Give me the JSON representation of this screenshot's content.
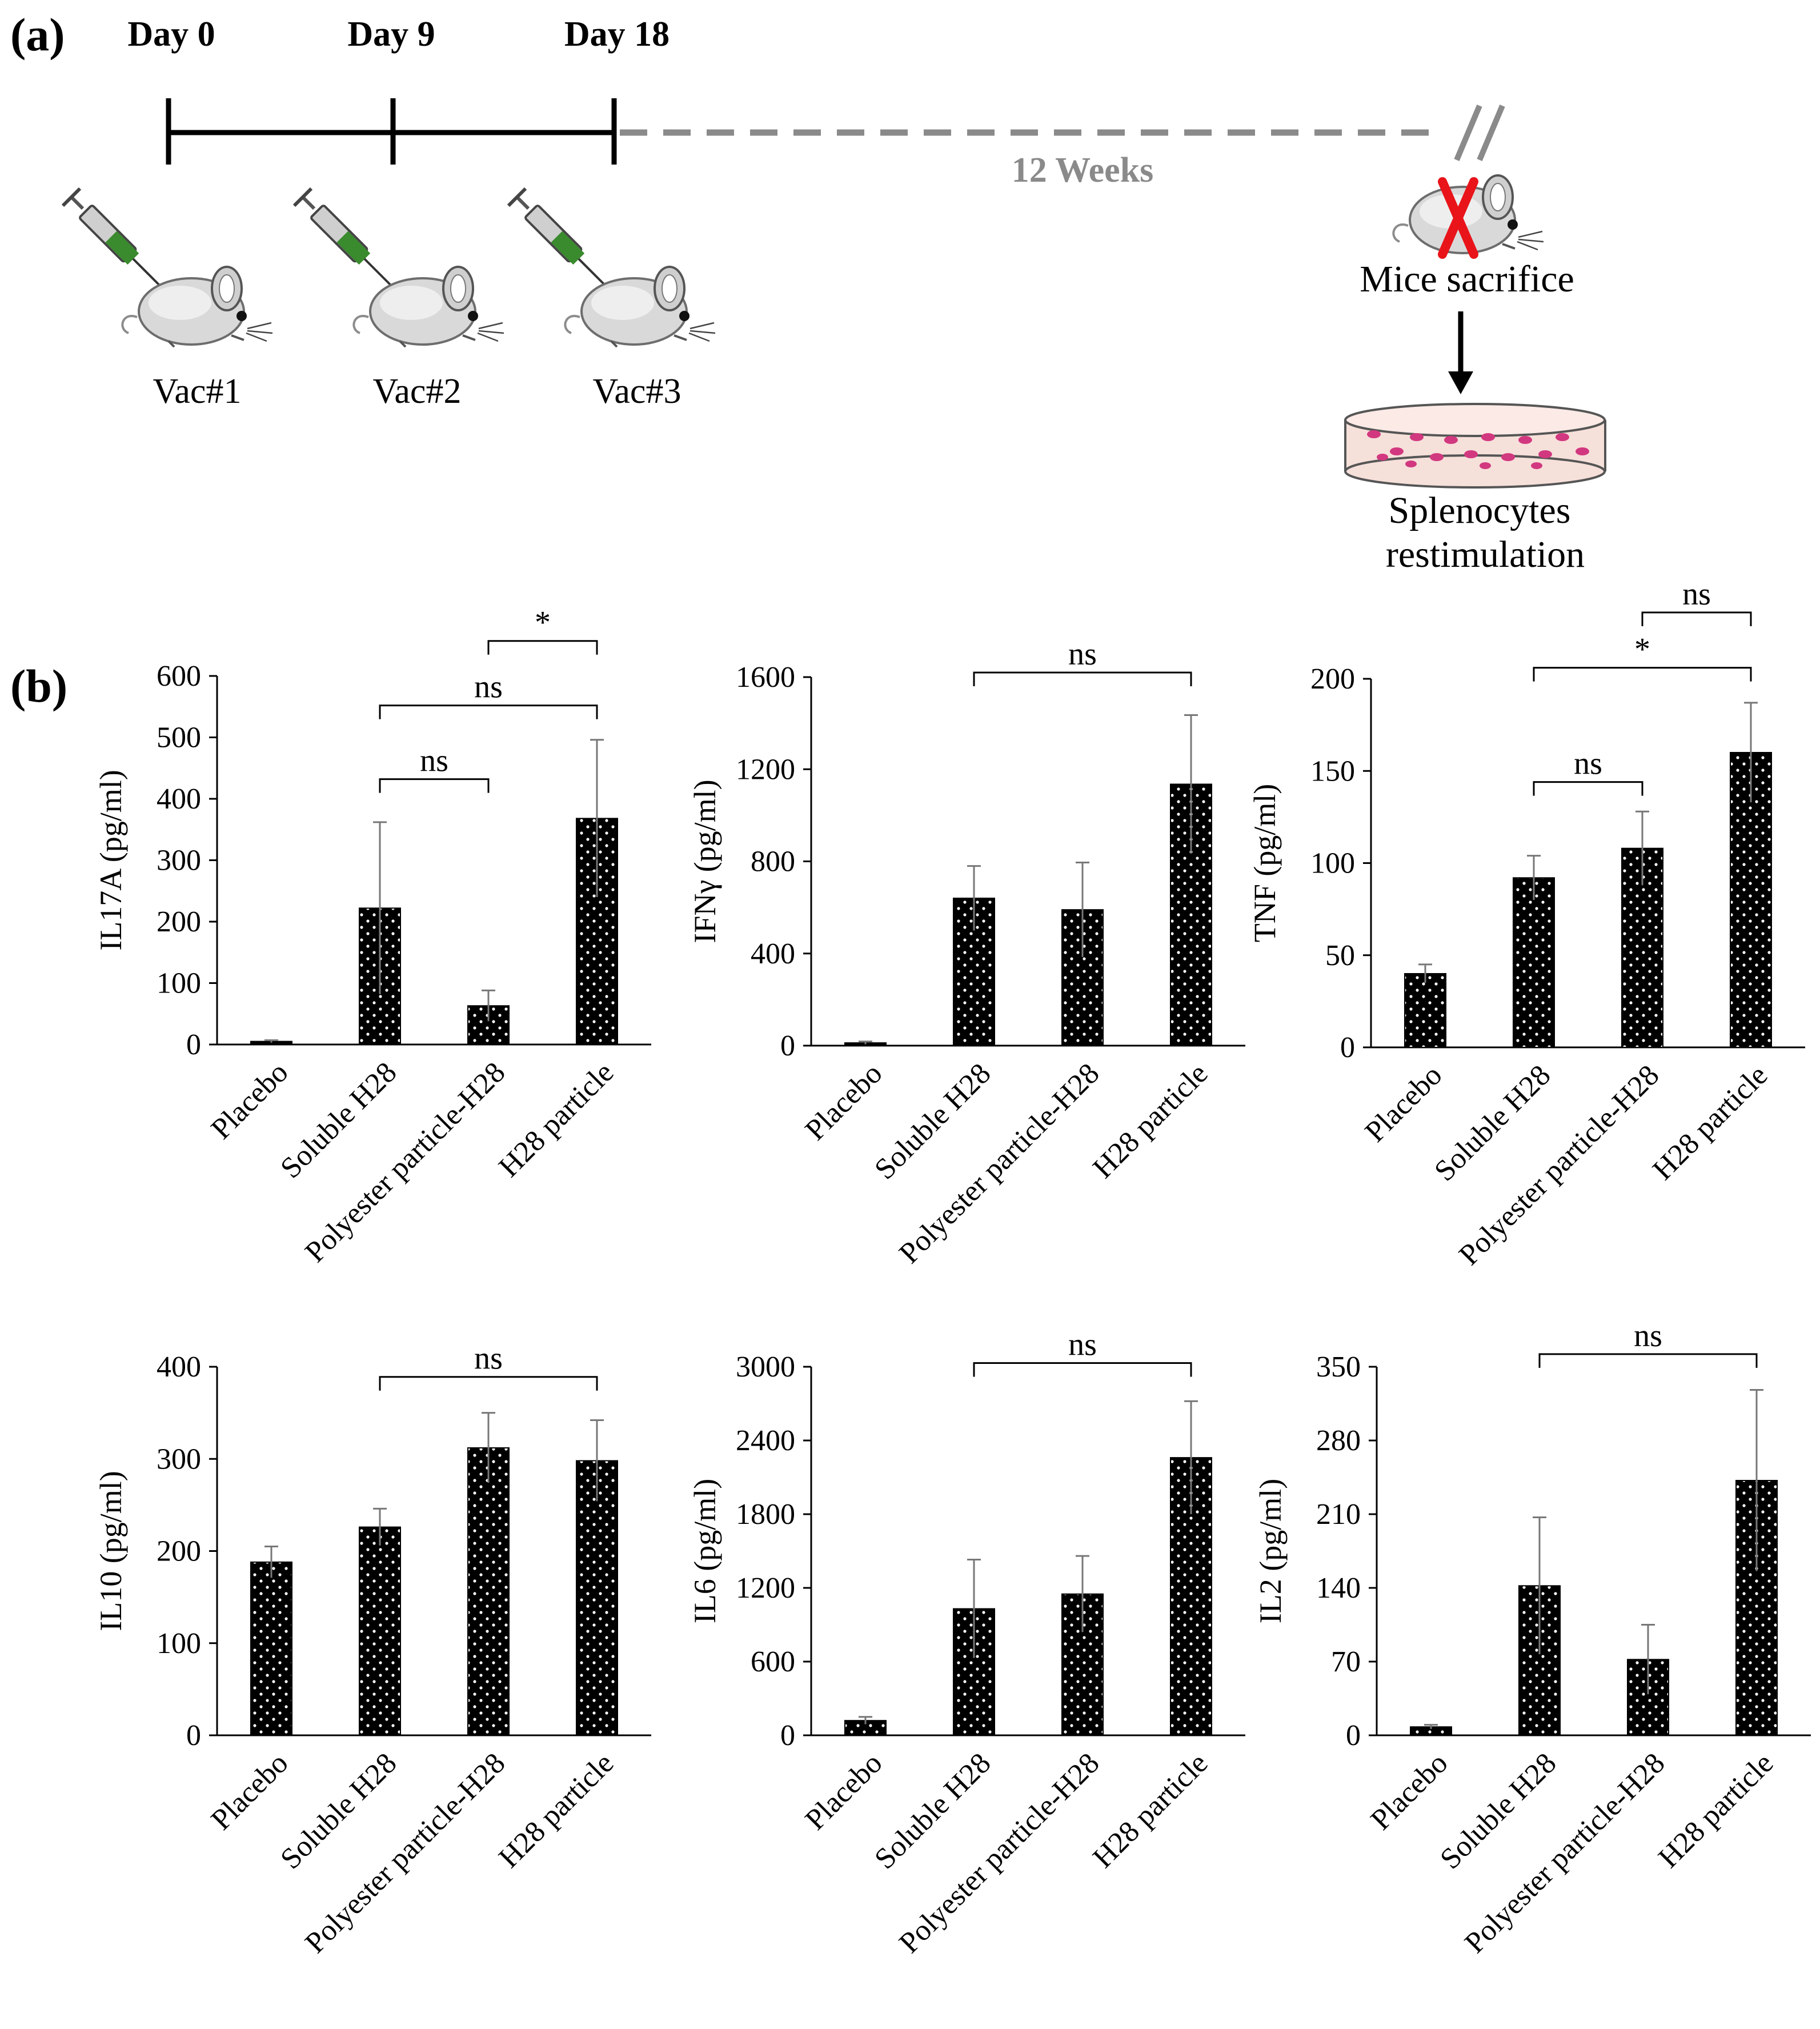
{
  "panel_a": {
    "label": "(a)",
    "days": [
      "Day 0",
      "Day 9",
      "Day 18"
    ],
    "gap_label": "12 Weeks",
    "vaccinations": [
      "Vac#1",
      "Vac#2",
      "Vac#3"
    ],
    "sacrifice_label": "Mice sacrifice",
    "restim_label_line1": "Splenocytes",
    "restim_label_line2": "restimulation",
    "colors": {
      "timeline": "#000000",
      "dashed": "#8a8a8a",
      "cross": "#e8141a",
      "syringe": "#3a8a2e",
      "dish": "#f6e0da",
      "cell": "#d2387f"
    }
  },
  "panel_b": {
    "label": "(b)"
  },
  "chart_data": [
    {
      "type": "bar",
      "ylabel": "IL17A (pg/ml)",
      "categories": [
        "Placebo",
        "Soluble H28",
        "Polyester particle-H28",
        "H28 particle"
      ],
      "values": [
        5,
        222,
        63,
        368
      ],
      "errors": [
        2,
        140,
        25,
        128
      ],
      "ylim": [
        0,
        600
      ],
      "yticks": [
        0,
        100,
        200,
        300,
        400,
        500,
        600
      ],
      "significance": [
        {
          "from": 1,
          "to": 2,
          "label": "ns",
          "level": 432
        },
        {
          "from": 1,
          "to": 3,
          "label": "ns",
          "level": 552
        },
        {
          "from": 2,
          "to": 3,
          "label": "*",
          "level": 657
        }
      ]
    },
    {
      "type": "bar",
      "ylabel": "IFNγ (pg/ml)",
      "categories": [
        "Placebo",
        "Soluble H28",
        "Polyester particle-H28",
        "H28 particle"
      ],
      "values": [
        12,
        640,
        590,
        1135
      ],
      "errors": [
        6,
        140,
        205,
        300
      ],
      "ylim": [
        0,
        1600
      ],
      "yticks": [
        0,
        400,
        800,
        1200,
        1600
      ],
      "significance": [
        {
          "from": 1,
          "to": 3,
          "label": "ns",
          "level": 1620
        }
      ]
    },
    {
      "type": "bar",
      "ylabel": "TNF (pg/ml)",
      "categories": [
        "Placebo",
        "Soluble H28",
        "Polyester particle-H28",
        "H28 particle"
      ],
      "values": [
        40,
        92,
        108,
        160
      ],
      "errors": [
        5,
        12,
        20,
        27
      ],
      "ylim": [
        0,
        200
      ],
      "yticks": [
        0,
        50,
        100,
        150,
        200
      ],
      "significance": [
        {
          "from": 1,
          "to": 2,
          "label": "ns",
          "level": 144
        },
        {
          "from": 1,
          "to": 3,
          "label": "*",
          "level": 206
        },
        {
          "from": 2,
          "to": 3,
          "label": "ns",
          "level": 236
        }
      ]
    },
    {
      "type": "bar",
      "ylabel": "IL10 (pg/ml)",
      "categories": [
        "Placebo",
        "Soluble H28",
        "Polyester particle-H28",
        "H28 particle"
      ],
      "values": [
        188,
        226,
        312,
        298
      ],
      "errors": [
        17,
        20,
        38,
        44
      ],
      "ylim": [
        0,
        400
      ],
      "yticks": [
        0,
        100,
        200,
        300,
        400
      ],
      "significance": [
        {
          "from": 1,
          "to": 3,
          "label": "ns",
          "level": 389
        }
      ]
    },
    {
      "type": "bar",
      "ylabel": "IL6 (pg/ml)",
      "categories": [
        "Placebo",
        "Soluble H28",
        "Polyester particle-H28",
        "H28 particle"
      ],
      "values": [
        120,
        1030,
        1150,
        2260
      ],
      "errors": [
        30,
        400,
        310,
        460
      ],
      "ylim": [
        0,
        3000
      ],
      "yticks": [
        0,
        600,
        1200,
        1800,
        2400,
        3000
      ],
      "significance": [
        {
          "from": 1,
          "to": 3,
          "label": "ns",
          "level": 3030
        }
      ]
    },
    {
      "type": "bar",
      "ylabel": "IL2 (pg/ml)",
      "categories": [
        "Placebo",
        "Soluble H28",
        "Polyester particle-H28",
        "H28 particle"
      ],
      "values": [
        8,
        142,
        72,
        242
      ],
      "errors": [
        2,
        65,
        33,
        86
      ],
      "ylim": [
        0,
        350
      ],
      "yticks": [
        0,
        70,
        140,
        210,
        280,
        350
      ],
      "significance": [
        {
          "from": 1,
          "to": 3,
          "label": "ns",
          "level": 362
        }
      ]
    }
  ]
}
